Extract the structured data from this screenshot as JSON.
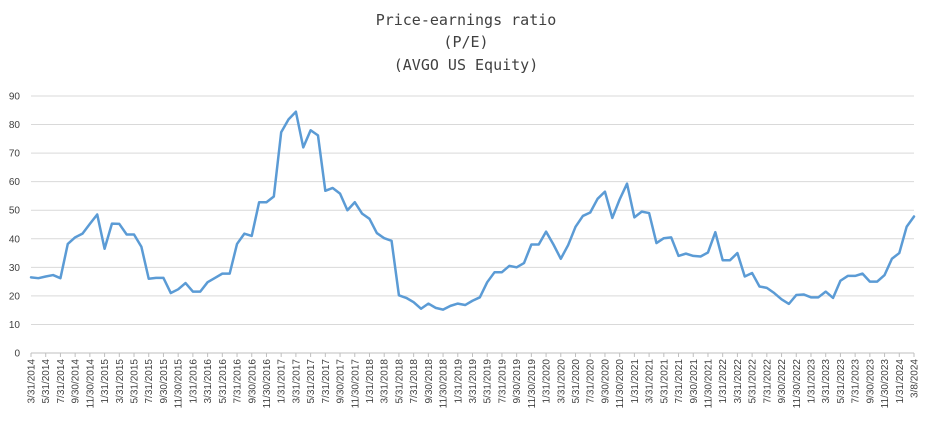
{
  "chart_data": {
    "type": "line",
    "title": "Price-earnings ratio",
    "subtitle_lines": [
      "(P/E)",
      "(AVGO US Equity)"
    ],
    "xlabel": "",
    "ylabel": "",
    "ylim": [
      0,
      90
    ],
    "yticks": [
      0,
      10,
      20,
      30,
      40,
      50,
      60,
      70,
      80,
      90
    ],
    "grid": true,
    "legend": "none",
    "color": "#5b9bd5",
    "x_tick_labels": [
      "3/31/2014",
      "5/31/2014",
      "7/31/2014",
      "9/30/2014",
      "11/30/2014",
      "1/31/2015",
      "3/31/2015",
      "5/31/2015",
      "7/31/2015",
      "9/30/2015",
      "11/30/2015",
      "1/31/2016",
      "3/31/2016",
      "5/31/2016",
      "7/31/2016",
      "9/30/2016",
      "11/30/2016",
      "1/31/2017",
      "3/31/2017",
      "5/31/2017",
      "7/31/2017",
      "9/30/2017",
      "11/30/2017",
      "1/31/2018",
      "3/31/2018",
      "5/31/2018",
      "7/31/2018",
      "9/30/2018",
      "11/30/2018",
      "1/31/2019",
      "3/31/2019",
      "5/31/2019",
      "7/31/2019",
      "9/30/2019",
      "11/30/2019",
      "1/31/2020",
      "3/31/2020",
      "5/31/2020",
      "7/31/2020",
      "9/30/2020",
      "11/30/2020",
      "1/31/2021",
      "3/31/2021",
      "5/31/2021",
      "7/31/2021",
      "9/30/2021",
      "11/30/2021",
      "1/31/2022",
      "3/31/2022",
      "5/31/2022",
      "7/31/2022",
      "9/30/2022",
      "11/30/2022",
      "1/31/2023",
      "3/31/2023",
      "5/31/2023",
      "7/31/2023",
      "9/30/2023",
      "11/30/2023",
      "1/31/2024",
      "3/8/2024"
    ],
    "series": [
      {
        "name": "P/E",
        "values": [
          26.5,
          26.2,
          26.8,
          27.3,
          26.2,
          38.2,
          40.5,
          41.8,
          45.2,
          48.5,
          36.5,
          45.3,
          45.2,
          41.5,
          41.5,
          37.2,
          26.0,
          26.3,
          26.3,
          21.0,
          22.3,
          24.5,
          21.5,
          21.5,
          24.8,
          26.3,
          27.8,
          27.8,
          38.2,
          41.8,
          41.0,
          52.8,
          52.8,
          54.8,
          77.3,
          81.8,
          84.5,
          72.0,
          78.0,
          76.2,
          56.8,
          57.8,
          55.8,
          50.0,
          52.8,
          48.8,
          47.0,
          42.0,
          40.2,
          39.3,
          20.2,
          19.3,
          17.8,
          15.5,
          17.3,
          15.8,
          15.2,
          16.5,
          17.3,
          16.8,
          18.3,
          19.5,
          24.8,
          28.3,
          28.3,
          30.5,
          30.0,
          31.5,
          38.0,
          38.0,
          42.5,
          38.0,
          33.0,
          37.8,
          44.2,
          48.0,
          49.2,
          54.0,
          56.5,
          47.3,
          53.8,
          59.3,
          47.5,
          49.5,
          49.0,
          38.5,
          40.2,
          40.5,
          34.0,
          34.8,
          34.0,
          33.8,
          35.2,
          42.3,
          32.5,
          32.5,
          35.0,
          26.8,
          28.0,
          23.3,
          22.8,
          21.0,
          18.8,
          17.2,
          20.3,
          20.5,
          19.5,
          19.5,
          21.5,
          19.3,
          25.3,
          27.0,
          27.0,
          27.8,
          25.0,
          25.0,
          27.3,
          33.0,
          35.0,
          44.2,
          47.8
        ]
      }
    ]
  }
}
